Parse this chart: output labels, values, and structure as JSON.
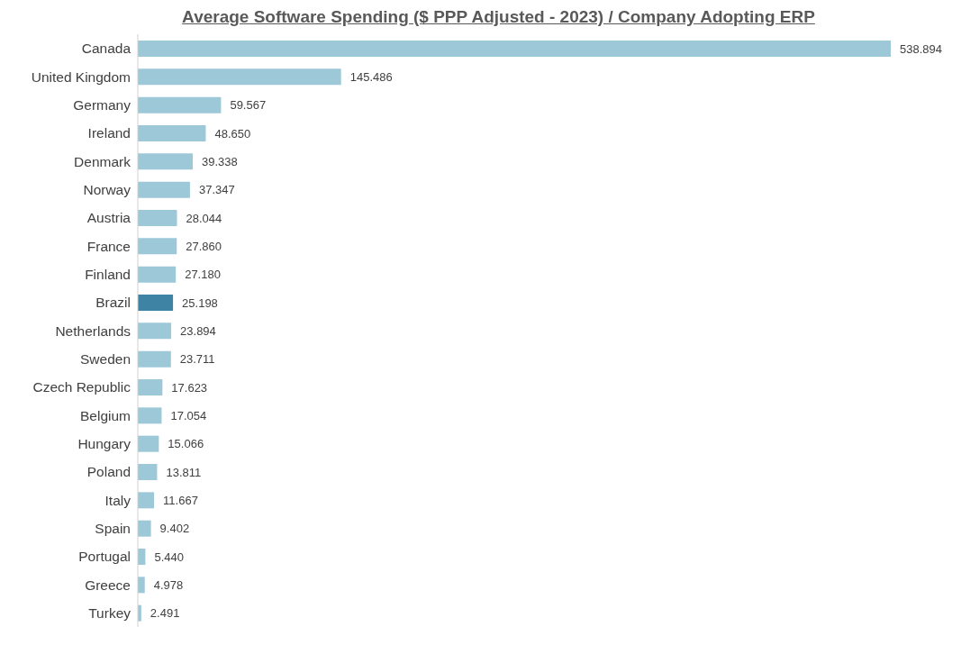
{
  "chart_data": {
    "type": "bar",
    "orientation": "horizontal",
    "title": "Average Software Spending ($ PPP Adjusted - 2023) / Company Adopting ERP",
    "categories": [
      "Canada",
      "United Kingdom",
      "Germany",
      "Ireland",
      "Denmark",
      "Norway",
      "Austria",
      "France",
      "Finland",
      "Brazil",
      "Netherlands",
      "Sweden",
      "Czech Republic",
      "Belgium",
      "Hungary",
      "Poland",
      "Italy",
      "Spain",
      "Portugal",
      "Greece",
      "Turkey"
    ],
    "values": [
      538.894,
      145.486,
      59.567,
      48.65,
      39.338,
      37.347,
      28.044,
      27.86,
      27.18,
      25.198,
      23.894,
      23.711,
      17.623,
      17.054,
      15.066,
      13.811,
      11.667,
      9.402,
      5.44,
      4.978,
      2.491
    ],
    "value_labels": [
      "538.894",
      "145.486",
      "59.567",
      "48.650",
      "39.338",
      "37.347",
      "28.044",
      "27.860",
      "27.180",
      "25.198",
      "23.894",
      "23.711",
      "17.623",
      "17.054",
      "15.066",
      "13.811",
      "11.667",
      "9.402",
      "5.440",
      "4.978",
      "2.491"
    ],
    "colors": [
      "#9dc8d8",
      "#9dc8d8",
      "#9dc8d8",
      "#9dc8d8",
      "#9dc8d8",
      "#9dc8d8",
      "#9dc8d8",
      "#9dc8d8",
      "#9dc8d8",
      "#3e83a3",
      "#9dc8d8",
      "#9dc8d8",
      "#9dc8d8",
      "#9dc8d8",
      "#9dc8d8",
      "#9dc8d8",
      "#9dc8d8",
      "#9dc8d8",
      "#9dc8d8",
      "#9dc8d8",
      "#9dc8d8"
    ],
    "grid": false,
    "legend": false
  }
}
